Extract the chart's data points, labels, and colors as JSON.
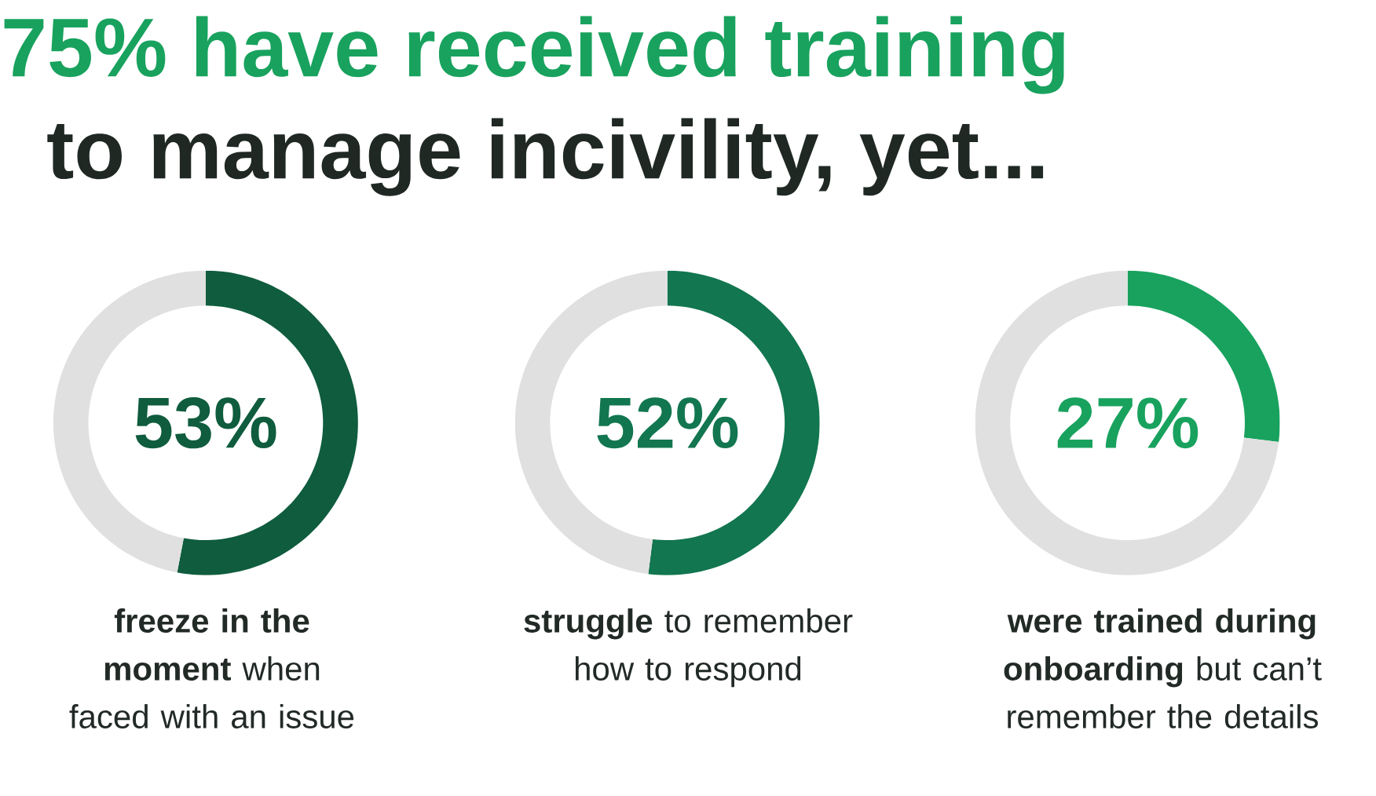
{
  "chart_data": [
    {
      "type": "donut",
      "title": "75% have received training",
      "subtitle": "to manage incivility, yet...",
      "categories": [
        null,
        null
      ],
      "values": [
        53,
        47
      ],
      "colors": [
        "#0f5c3e",
        "#e0e0e0"
      ],
      "value_labels": [
        "53%",
        null
      ],
      "annotations": [
        "**freeze in the moment** when faced with an issue"
      ]
    },
    {
      "type": "donut",
      "categories": [
        null,
        null
      ],
      "values": [
        52,
        48
      ],
      "colors": [
        "#127650",
        "#e0e0e0"
      ],
      "value_labels": [
        "52%",
        null
      ],
      "annotations": [
        "**struggle** to remember how to respond"
      ]
    },
    {
      "type": "donut",
      "categories": [
        null,
        null
      ],
      "values": [
        27,
        73
      ],
      "colors": [
        "#18a25e",
        "#e0e0e0"
      ],
      "value_labels": [
        "27%",
        null
      ],
      "annotations": [
        "**were trained during onboarding** but can’t remember the details"
      ]
    }
  ]
}
